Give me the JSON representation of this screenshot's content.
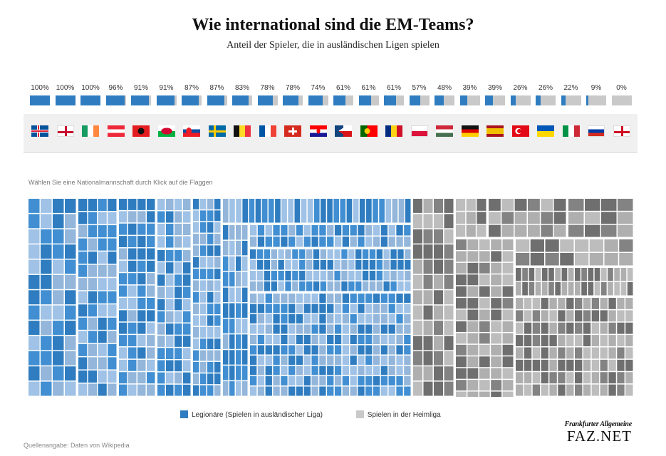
{
  "title": "Wie international sind die EM-Teams?",
  "subtitle": "Anteil der Spieler, die in ausländischen Ligen spielen",
  "hint": "Wählen Sie eine Nationalmannschaft durch Klick auf die Flaggen",
  "source": "Quellenangabe: Daten von Wikipedia",
  "brand": {
    "top": "Frankfurter Allgemeine",
    "main": "FAZ.NET"
  },
  "legend": {
    "foreign": "Legionäre (Spielen in ausländischer Liga)",
    "domestic": "Spielen in der Heimliga"
  },
  "colors": {
    "foreign": "#2f7dc0",
    "domestic": "#c9c9c9",
    "treemap_light": "#9fc2e6",
    "treemap_dark": "#6f6f6f",
    "treemap_light_gray": "#bdbdbd"
  },
  "chart_data": {
    "type": "bar",
    "title": "Wie international sind die EM-Teams?",
    "subtitle": "Anteil der Spieler, die in ausländischen Ligen spielen",
    "categories": [
      "Island",
      "Nordirland",
      "Irland",
      "Österreich",
      "Albanien",
      "Wales",
      "Slowakei",
      "Schweden",
      "Belgien",
      "Frankreich",
      "Schweiz",
      "Kroatien",
      "Tschechien",
      "Portugal",
      "Rumänien",
      "Polen",
      "Ungarn",
      "Deutschland",
      "Spanien",
      "Türkei",
      "Ukraine",
      "Italien",
      "Russland",
      "England"
    ],
    "flags": [
      "iceland-flag-icon",
      "northern-ireland-flag-icon",
      "ireland-flag-icon",
      "austria-flag-icon",
      "albania-flag-icon",
      "wales-flag-icon",
      "slovakia-flag-icon",
      "sweden-flag-icon",
      "belgium-flag-icon",
      "france-flag-icon",
      "switzerland-flag-icon",
      "croatia-flag-icon",
      "czech-republic-flag-icon",
      "portugal-flag-icon",
      "romania-flag-icon",
      "poland-flag-icon",
      "hungary-flag-icon",
      "germany-flag-icon",
      "spain-flag-icon",
      "turkey-flag-icon",
      "ukraine-flag-icon",
      "italy-flag-icon",
      "russia-flag-icon",
      "england-flag-icon"
    ],
    "values": [
      100,
      100,
      100,
      96,
      91,
      91,
      87,
      87,
      83,
      78,
      78,
      74,
      61,
      61,
      61,
      57,
      48,
      39,
      39,
      26,
      26,
      22,
      9,
      0
    ],
    "labels": [
      "100%",
      "100%",
      "100%",
      "96%",
      "91%",
      "91%",
      "87%",
      "87%",
      "83%",
      "78%",
      "78%",
      "74%",
      "61%",
      "61%",
      "61%",
      "57%",
      "48%",
      "39%",
      "39%",
      "26%",
      "26%",
      "22%",
      "9%",
      "0%"
    ],
    "ylim": [
      0,
      100
    ],
    "unit": "%"
  }
}
